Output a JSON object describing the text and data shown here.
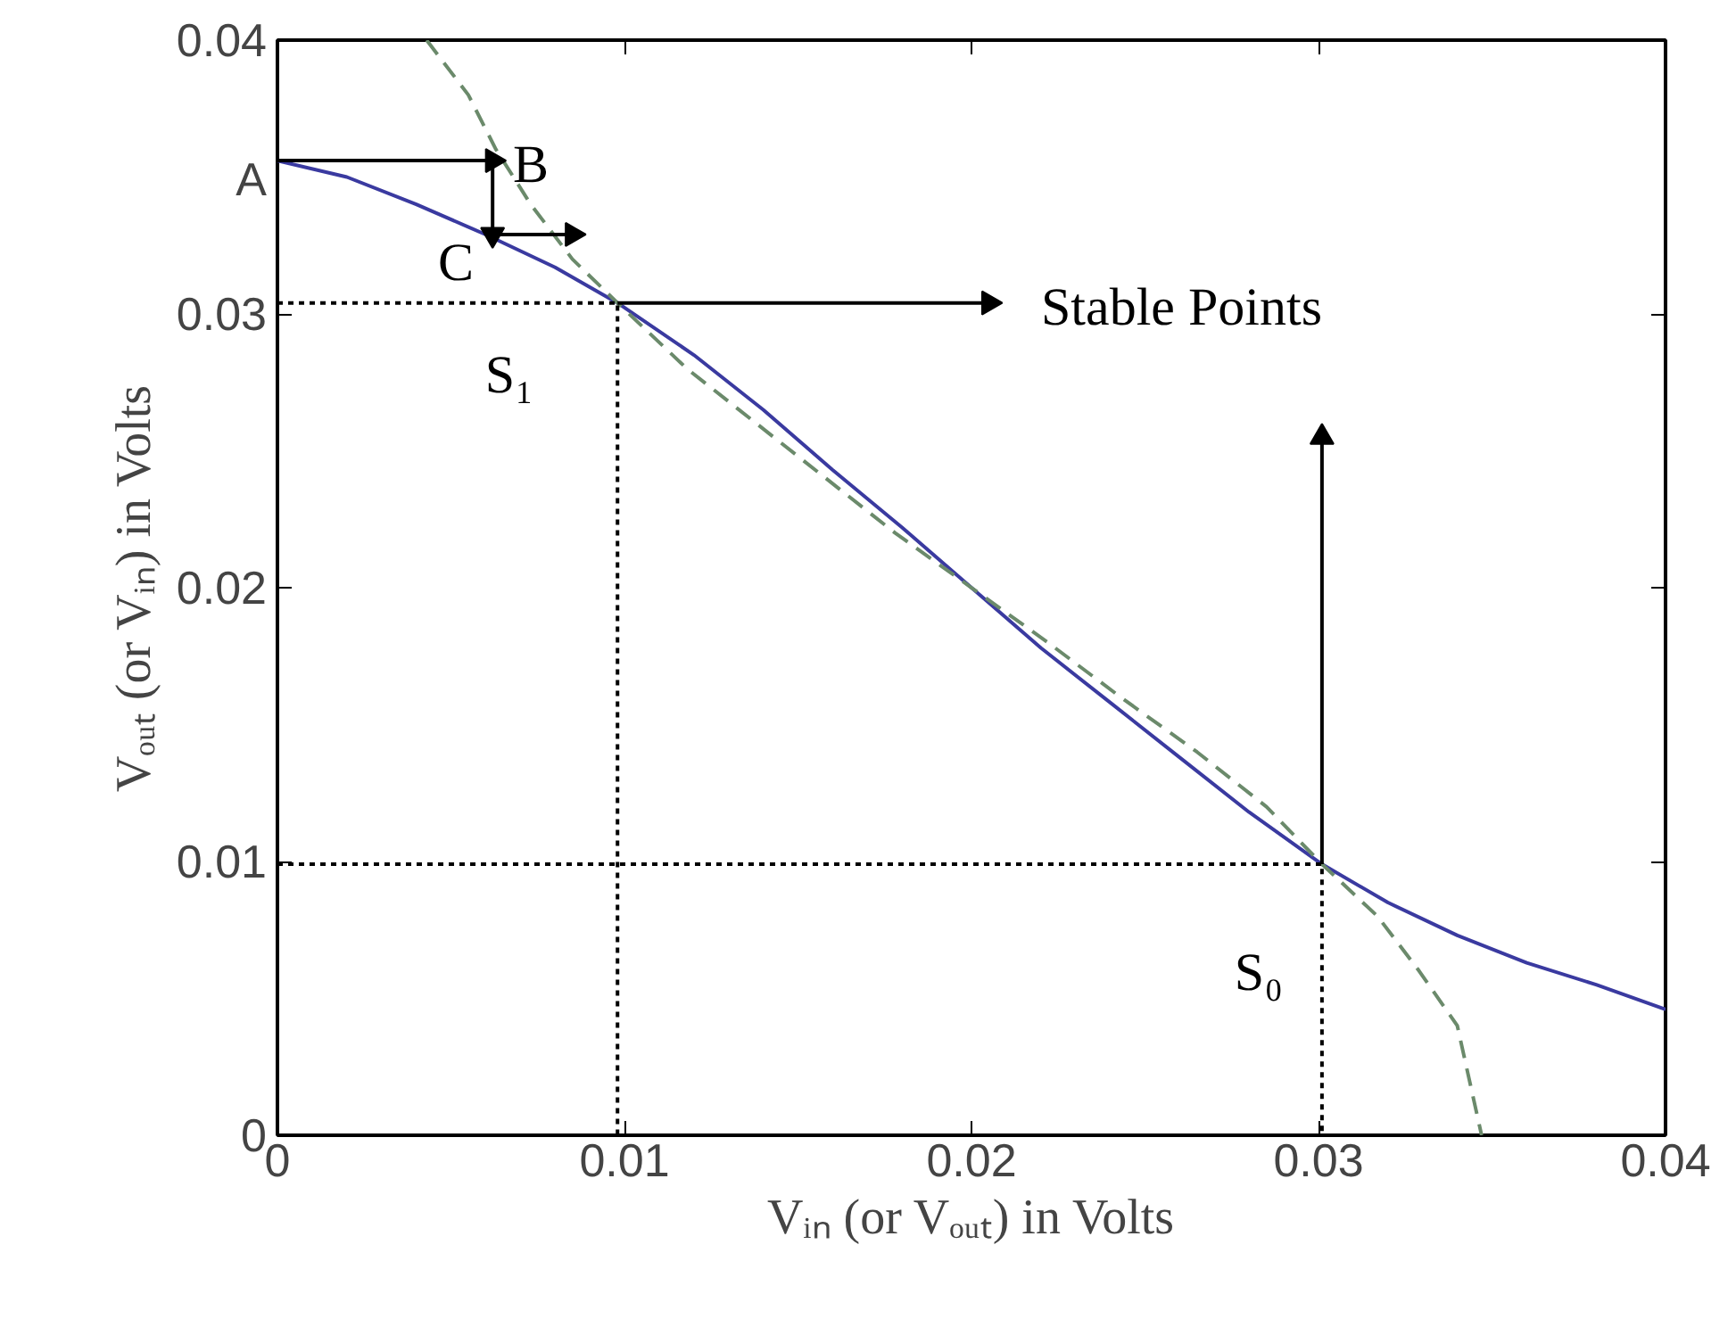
{
  "chart_data": {
    "type": "line",
    "xlabel": "Vᵢₙ (or Vₒᵤₜ) in Volts",
    "ylabel": "Vₒᵤₜ (or Vᵢₙ) in Volts",
    "xlim": [
      0,
      0.04
    ],
    "ylim": [
      0,
      0.04
    ],
    "xticks": [
      0,
      0.01,
      0.02,
      0.03,
      0.04
    ],
    "yticks": [
      0,
      0.01,
      0.02,
      0.03,
      0.04
    ],
    "grid": false,
    "series": [
      {
        "color": "#3a3aa0",
        "line_style": "solid",
        "x": [
          0,
          0.002,
          0.004,
          0.006,
          0.008,
          0.0098,
          0.012,
          0.014,
          0.016,
          0.018,
          0.02,
          0.022,
          0.024,
          0.026,
          0.028,
          0.0301,
          0.032,
          0.034,
          0.036,
          0.038,
          0.04
        ],
        "values": [
          0.0356,
          0.035,
          0.034,
          0.0329,
          0.0317,
          0.0304,
          0.0285,
          0.0265,
          0.0243,
          0.0222,
          0.02,
          0.0178,
          0.0158,
          0.0138,
          0.0118,
          0.0099,
          0.0085,
          0.0073,
          0.0063,
          0.0055,
          0.0046
        ]
      },
      {
        "color": "#6b8a6b",
        "line_style": "dashed",
        "x": [
          0.0043,
          0.0055,
          0.0063,
          0.0073,
          0.0085,
          0.0098,
          0.0118,
          0.0138,
          0.0158,
          0.0178,
          0.02,
          0.0222,
          0.0243,
          0.0265,
          0.0285,
          0.0301,
          0.0317,
          0.0329,
          0.034,
          0.0347
        ],
        "values": [
          0.04,
          0.038,
          0.036,
          0.034,
          0.032,
          0.0304,
          0.028,
          0.026,
          0.024,
          0.022,
          0.02,
          0.018,
          0.016,
          0.014,
          0.012,
          0.0099,
          0.008,
          0.006,
          0.004,
          0
        ]
      },
      {
        "color": "#000000",
        "line_style": "dotted",
        "x": [
          0,
          0.0098,
          0.0098
        ],
        "values": [
          0.0304,
          0.0304,
          0
        ]
      },
      {
        "color": "#000000",
        "line_style": "dotted",
        "x": [
          0,
          0.0301,
          0.0301
        ],
        "values": [
          0.0099,
          0.0099,
          0
        ]
      },
      {
        "marker": "triangle",
        "color": "#000000",
        "line_style": "solid",
        "x": [
          0,
          0.0062
        ],
        "values": [
          0.0356,
          0.0356
        ]
      },
      {
        "marker": "triangle",
        "color": "#000000",
        "line_style": "solid",
        "x": [
          0.0062,
          0.0062
        ],
        "values": [
          0.0356,
          0.0329
        ]
      },
      {
        "marker": "triangle",
        "color": "#000000",
        "line_style": "solid",
        "x": [
          0.0063,
          0.0085
        ],
        "values": [
          0.0329,
          0.0329
        ]
      },
      {
        "marker": "triangle",
        "color": "#000000",
        "line_style": "solid",
        "x": [
          0.0098,
          0.0205
        ],
        "values": [
          0.0304,
          0.0304
        ]
      },
      {
        "marker": "triangle",
        "color": "#000000",
        "line_style": "solid",
        "x": [
          0.0301,
          0.0301
        ],
        "values": [
          0.0099,
          0.0255
        ]
      }
    ],
    "annotations": [
      "A",
      "B",
      "C",
      "S₁",
      "Stable Points",
      "S₀"
    ]
  }
}
